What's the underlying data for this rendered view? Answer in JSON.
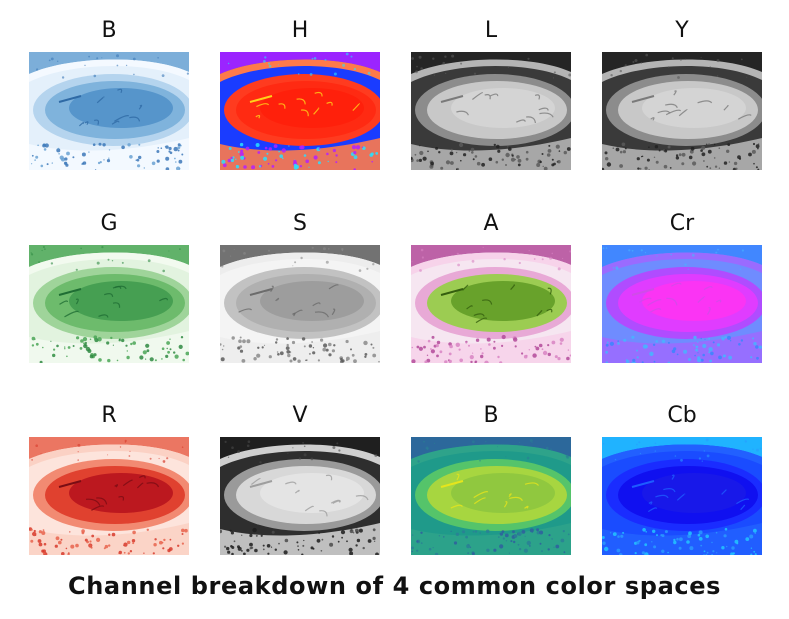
{
  "panels": [
    {
      "title": "B",
      "palette": {
        "bg": "#e4f0fb",
        "rim": "#b5d4ee",
        "lid": "#f4f9ff",
        "eye": "#7fb3dc",
        "core": "#4f8fc8",
        "vein": "#2f6aa5",
        "speck": "#3c78b8",
        "lash": "#6aa2d2"
      }
    },
    {
      "title": "H",
      "palette": {
        "bg": "#1a3cff",
        "rim": "#ff3b1f",
        "lid": "#ff7a4a",
        "eye": "#ff2a12",
        "core": "#ff1e0a",
        "vein": "#ffd21a",
        "speck": "#28e0ff",
        "lash": "#b320ff"
      }
    },
    {
      "title": "L",
      "palette": {
        "bg": "#3a3a3a",
        "rim": "#8c8c8c",
        "lid": "#b4b4b4",
        "eye": "#c8c8c8",
        "core": "#d6d6d6",
        "vein": "#7a7a7a",
        "speck": "#5a5a5a",
        "lash": "#222222"
      }
    },
    {
      "title": "Y",
      "palette": {
        "bg": "#3a3a3a",
        "rim": "#8c8c8c",
        "lid": "#b4b4b4",
        "eye": "#c8c8c8",
        "core": "#d6d6d6",
        "vein": "#7a7a7a",
        "speck": "#5a5a5a",
        "lash": "#222222"
      }
    },
    {
      "title": "G",
      "palette": {
        "bg": "#e2f3df",
        "rim": "#9fd49a",
        "lid": "#f2faef",
        "eye": "#6dbb6c",
        "core": "#3f9a4d",
        "vein": "#1f6e34",
        "speck": "#2f8a42",
        "lash": "#4aa656"
      }
    },
    {
      "title": "S",
      "palette": {
        "bg": "#f4f4f4",
        "rim": "#c2c2c2",
        "lid": "#ededed",
        "eye": "#b0b0b0",
        "core": "#9a9a9a",
        "vein": "#6c6c6c",
        "speck": "#8a8a8a",
        "lash": "#5a5a5a"
      }
    },
    {
      "title": "A",
      "palette": {
        "bg": "#f6e6f1",
        "rim": "#e8a9d6",
        "lid": "#f7d3ea",
        "eye": "#9ccc52",
        "core": "#5f9a24",
        "vein": "#355f0f",
        "speck": "#d884c3",
        "lash": "#b34a9a"
      }
    },
    {
      "title": "Cr",
      "palette": {
        "bg": "#6f8cff",
        "rim": "#b04cff",
        "lid": "#9a6bff",
        "eye": "#e03cff",
        "core": "#ff33f2",
        "vein": "#d04ce8",
        "speck": "#48b4ff",
        "lash": "#3a86ff"
      }
    },
    {
      "title": "R",
      "palette": {
        "bg": "#fde4dc",
        "rim": "#f28a72",
        "lid": "#fbd1c4",
        "eye": "#e0412f",
        "core": "#b5121c",
        "vein": "#7a0d14",
        "speck": "#d73a2c",
        "lash": "#e7634c"
      }
    },
    {
      "title": "V",
      "palette": {
        "bg": "#2e2e2e",
        "rim": "#9a9a9a",
        "lid": "#cfcfcf",
        "eye": "#d8d8d8",
        "core": "#e6e6e6",
        "vein": "#9e9e9e",
        "speck": "#4a4a4a",
        "lash": "#1c1c1c"
      }
    },
    {
      "title": "B",
      "palette": {
        "bg": "#1f9a8a",
        "rim": "#55c46a",
        "lid": "#2ea38a",
        "eye": "#a7d640",
        "core": "#8cc63f",
        "vein": "#e6e51c",
        "speck": "#2a7f95",
        "lash": "#2f5f9e"
      }
    },
    {
      "title": "Cb",
      "palette": {
        "bg": "#1a4cff",
        "rim": "#1a2cff",
        "lid": "#2260ff",
        "eye": "#1010f0",
        "core": "#1a1ae8",
        "vein": "#1e5cff",
        "speck": "#2a9aff",
        "lash": "#22c6ff"
      }
    }
  ],
  "caption": "Channel breakdown of 4 common color spaces"
}
